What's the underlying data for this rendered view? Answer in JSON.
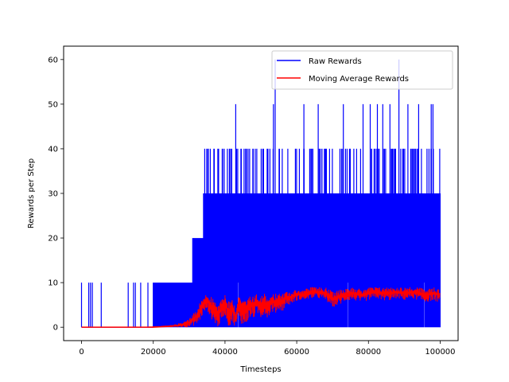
{
  "chart_data": {
    "type": "line",
    "title": "",
    "xlabel": "Timesteps",
    "ylabel": "Rewards per Step",
    "xlim": [
      -5000,
      105000
    ],
    "ylim": [
      -3,
      63
    ],
    "xticks": [
      0,
      20000,
      40000,
      60000,
      80000,
      100000
    ],
    "xtick_labels": [
      "0",
      "20000",
      "40000",
      "60000",
      "80000",
      "100000"
    ],
    "yticks": [
      0,
      10,
      20,
      30,
      40,
      50,
      60
    ],
    "ytick_labels": [
      "0",
      "10",
      "20",
      "30",
      "40",
      "50",
      "60"
    ],
    "grid": false,
    "legend_position": "top-right",
    "series": [
      {
        "name": "Raw Rewards",
        "color": "#0000ff",
        "values_range": [
          0,
          60
        ],
        "segments": [
          {
            "x_start": 0,
            "x_end": 20000,
            "baseline": 0,
            "spikes_at_x": [
              0,
              2000,
              2500,
              3000,
              5500,
              13000,
              14500,
              15000,
              16500,
              18500
            ],
            "spike_value": 10
          },
          {
            "x_start": 20000,
            "x_end": 31000,
            "baseline": 0,
            "typical_max": 10
          },
          {
            "x_start": 31000,
            "x_end": 34000,
            "baseline": 0,
            "typical_max": 20
          },
          {
            "x_start": 34000,
            "x_end": 100000,
            "baseline": 0,
            "typical_max": 30,
            "frequent_peaks": 40
          }
        ],
        "notable_peaks": [
          {
            "x": 43000,
            "y": 50
          },
          {
            "x": 53500,
            "y": 50
          },
          {
            "x": 54000,
            "y": 60
          },
          {
            "x": 62000,
            "y": 50
          },
          {
            "x": 66000,
            "y": 50
          },
          {
            "x": 73000,
            "y": 50
          },
          {
            "x": 78500,
            "y": 50
          },
          {
            "x": 80500,
            "y": 50
          },
          {
            "x": 82500,
            "y": 50
          },
          {
            "x": 84000,
            "y": 50
          },
          {
            "x": 86000,
            "y": 50
          },
          {
            "x": 88500,
            "y": 60
          },
          {
            "x": 91000,
            "y": 50
          },
          {
            "x": 94000,
            "y": 50
          },
          {
            "x": 97500,
            "y": 50
          },
          {
            "x": 98000,
            "y": 50
          }
        ]
      },
      {
        "name": "Moving Average Rewards",
        "color": "#ff0000",
        "x": [
          0,
          5000,
          10000,
          15000,
          20000,
          25000,
          28000,
          30000,
          32000,
          33000,
          34000,
          35000,
          36000,
          37000,
          38000,
          39000,
          40000,
          41000,
          42000,
          43000,
          44000,
          45000,
          46000,
          47000,
          48000,
          49000,
          50000,
          51000,
          52000,
          53000,
          54000,
          55000,
          56000,
          57000,
          58000,
          60000,
          62000,
          64000,
          66000,
          68000,
          70000,
          72000,
          74000,
          76000,
          78000,
          80000,
          82000,
          84000,
          86000,
          88000,
          90000,
          92000,
          94000,
          96000,
          98000,
          100000
        ],
        "values": [
          0,
          0,
          0,
          0,
          0,
          0.2,
          0.5,
          1,
          2.5,
          4,
          5.5,
          6.5,
          5,
          4,
          2,
          4.5,
          6,
          3,
          5,
          2,
          6.5,
          3.5,
          4,
          5.5,
          5.5,
          6,
          5,
          6,
          4.5,
          6.5,
          5.5,
          6.5,
          6,
          7,
          6.5,
          7.5,
          7,
          7.5,
          8,
          7.5,
          6,
          7,
          7.5,
          7.5,
          7,
          7.5,
          8,
          7.5,
          7.5,
          8,
          7.5,
          8,
          7.5,
          7,
          7.5,
          7.5
        ],
        "band": [
          [
            0,
            0,
            0
          ],
          [
            5000,
            0,
            0
          ],
          [
            10000,
            0,
            0
          ],
          [
            15000,
            0,
            0
          ],
          [
            20000,
            0,
            0.2
          ],
          [
            25000,
            0,
            0.5
          ],
          [
            28000,
            0,
            1
          ],
          [
            30000,
            0,
            2
          ],
          [
            32000,
            0.5,
            4
          ],
          [
            33000,
            1.5,
            5.5
          ],
          [
            34000,
            3,
            7
          ],
          [
            35000,
            4,
            7.5
          ],
          [
            36000,
            2,
            7
          ],
          [
            37000,
            1,
            6
          ],
          [
            38000,
            0,
            5
          ],
          [
            39000,
            1,
            6.5
          ],
          [
            40000,
            3,
            7.5
          ],
          [
            41000,
            0,
            6
          ],
          [
            42000,
            1,
            7
          ],
          [
            43000,
            0,
            4
          ],
          [
            44000,
            2,
            8
          ],
          [
            45000,
            0,
            6
          ],
          [
            46000,
            1,
            6
          ],
          [
            47000,
            2,
            7
          ],
          [
            48000,
            2,
            7
          ],
          [
            49000,
            3,
            7.5
          ],
          [
            50000,
            2,
            7
          ],
          [
            51000,
            3,
            7.5
          ],
          [
            52000,
            2,
            7
          ],
          [
            53000,
            3.5,
            8
          ],
          [
            54000,
            3,
            7.5
          ],
          [
            55000,
            4,
            7.5
          ],
          [
            56000,
            3.5,
            7.5
          ],
          [
            57000,
            5,
            8
          ],
          [
            58000,
            5,
            8
          ],
          [
            60000,
            6,
            8.5
          ],
          [
            62000,
            6,
            8.5
          ],
          [
            64000,
            6.5,
            9
          ],
          [
            66000,
            6.5,
            9
          ],
          [
            68000,
            6,
            9
          ],
          [
            70000,
            4.5,
            8
          ],
          [
            72000,
            5,
            8.5
          ],
          [
            74000,
            6,
            9
          ],
          [
            76000,
            6,
            9
          ],
          [
            78000,
            5.5,
            8.5
          ],
          [
            80000,
            6,
            9
          ],
          [
            82000,
            6.5,
            9
          ],
          [
            84000,
            6,
            9
          ],
          [
            86000,
            6,
            9
          ],
          [
            88000,
            6.5,
            9
          ],
          [
            90000,
            6,
            9
          ],
          [
            92000,
            6.5,
            9
          ],
          [
            94000,
            6,
            9
          ],
          [
            96000,
            5.5,
            8.5
          ],
          [
            98000,
            6,
            9
          ],
          [
            100000,
            5.5,
            8.5
          ]
        ]
      }
    ]
  }
}
